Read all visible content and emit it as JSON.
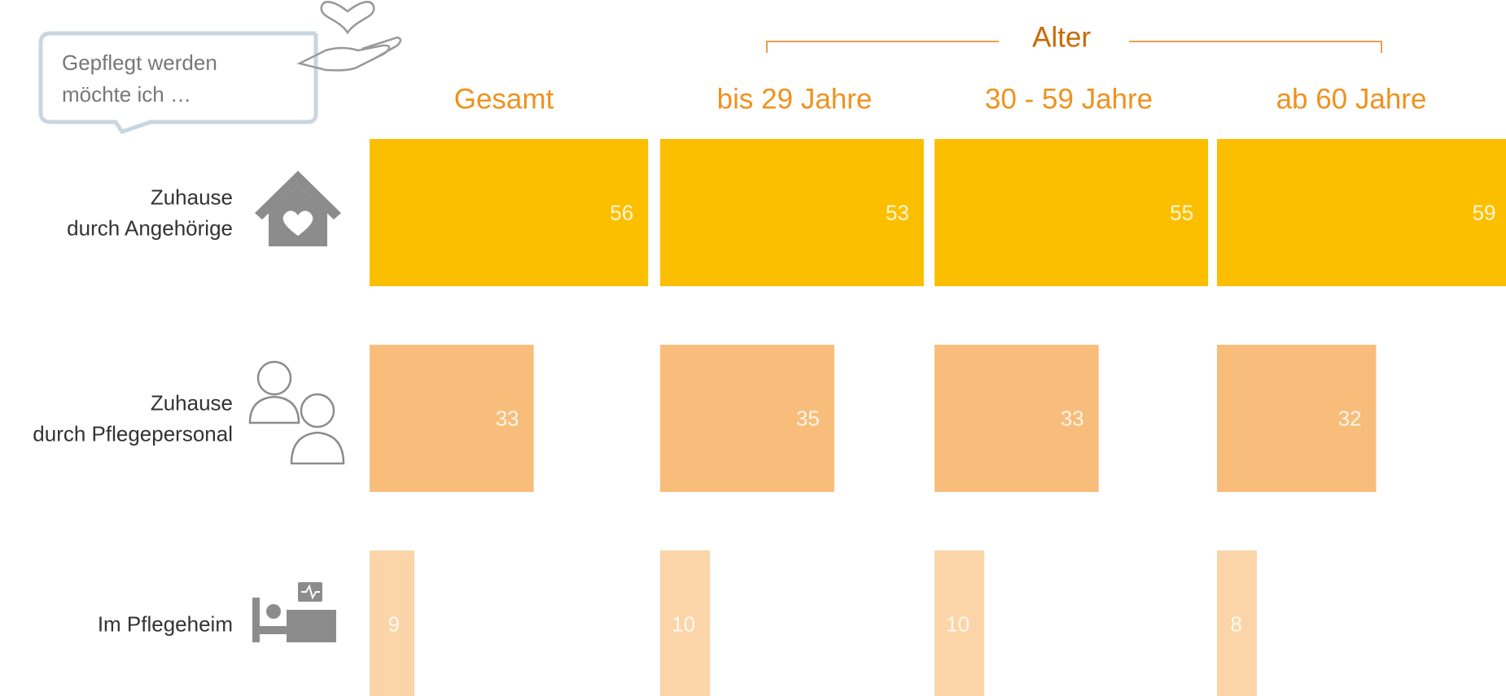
{
  "chart_data": {
    "type": "bar",
    "orientation": "horizontal",
    "callout": [
      "Gepflegt werden",
      "möchte ich …"
    ],
    "group_label": "Alter",
    "categories": [
      [
        "Zuhause",
        "durch Angehörige"
      ],
      [
        "Zuhause",
        "durch  Pflegepersonal"
      ],
      [
        "Im Pflegeheim"
      ]
    ],
    "colors": [
      "#fbbf00",
      "#f8bd7a",
      "#fbd5a8"
    ],
    "series": [
      {
        "name": "Gesamt",
        "values": [
          56,
          33,
          9
        ]
      },
      {
        "name": "bis 29 Jahre",
        "values": [
          53,
          35,
          10
        ]
      },
      {
        "name": "30 - 59 Jahre",
        "values": [
          55,
          33,
          10
        ]
      },
      {
        "name": "ab 60 Jahre",
        "values": [
          59,
          32,
          8
        ]
      }
    ],
    "xlim": [
      0,
      60
    ]
  }
}
